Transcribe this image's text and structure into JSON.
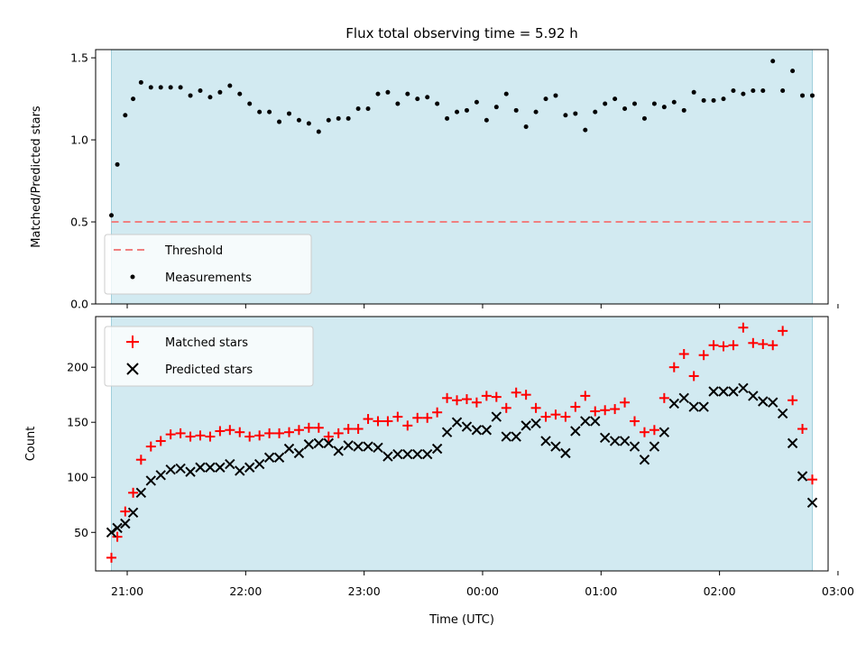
{
  "chart_data": [
    {
      "type": "scatter",
      "title": "Flux total observing time = 5.92 h",
      "xlabel": "",
      "ylabel": "Matched/Predicted stars",
      "ylim": [
        0,
        1.55
      ],
      "yticks": [
        "0.0",
        "0.5",
        "1.0",
        "1.5"
      ],
      "shaded_span": [
        "20:52",
        "02:47"
      ],
      "grid": false,
      "legend_position": "lower-left",
      "threshold": {
        "name": "Threshold",
        "value": 0.5,
        "color": "#f08080",
        "style": "dashed"
      },
      "series": [
        {
          "name": "Measurements",
          "color": "#000000",
          "x": [
            "20:52",
            "20:55",
            "20:59",
            "21:03",
            "21:07",
            "21:12",
            "21:17",
            "21:22",
            "21:27",
            "21:32",
            "21:37",
            "21:42",
            "21:47",
            "21:52",
            "21:57",
            "22:02",
            "22:07",
            "22:12",
            "22:17",
            "22:22",
            "22:27",
            "22:32",
            "22:37",
            "22:42",
            "22:47",
            "22:52",
            "22:57",
            "23:02",
            "23:07",
            "23:12",
            "23:17",
            "23:22",
            "23:27",
            "23:32",
            "23:37",
            "23:42",
            "23:47",
            "23:52",
            "23:57",
            "00:02",
            "00:07",
            "00:12",
            "00:17",
            "00:22",
            "00:27",
            "00:32",
            "00:37",
            "00:42",
            "00:47",
            "00:52",
            "00:57",
            "01:02",
            "01:07",
            "01:12",
            "01:17",
            "01:22",
            "01:27",
            "01:32",
            "01:37",
            "01:42",
            "01:47",
            "01:52",
            "01:57",
            "02:02",
            "02:07",
            "02:12",
            "02:17",
            "02:22",
            "02:27",
            "02:32",
            "02:37",
            "02:42",
            "02:47"
          ],
          "y": [
            0.54,
            0.85,
            1.15,
            1.25,
            1.35,
            1.32,
            1.32,
            1.32,
            1.32,
            1.27,
            1.3,
            1.26,
            1.29,
            1.33,
            1.28,
            1.22,
            1.17,
            1.17,
            1.11,
            1.16,
            1.12,
            1.1,
            1.05,
            1.12,
            1.13,
            1.13,
            1.19,
            1.19,
            1.28,
            1.29,
            1.22,
            1.28,
            1.25,
            1.26,
            1.22,
            1.13,
            1.17,
            1.18,
            1.23,
            1.12,
            1.2,
            1.28,
            1.18,
            1.08,
            1.17,
            1.25,
            1.27,
            1.15,
            1.16,
            1.06,
            1.17,
            1.22,
            1.25,
            1.19,
            1.22,
            1.13,
            1.22,
            1.2,
            1.23,
            1.18,
            1.29,
            1.24,
            1.24,
            1.25,
            1.3,
            1.28,
            1.3,
            1.3,
            1.48,
            1.3,
            1.42,
            1.27,
            1.27
          ]
        }
      ]
    },
    {
      "type": "scatter",
      "title": "",
      "xlabel": "Time (UTC)",
      "ylabel": "Count",
      "ylim": [
        15,
        246
      ],
      "yticks": [
        "50",
        "100",
        "150",
        "200"
      ],
      "xticks": [
        "21:00",
        "22:00",
        "23:00",
        "00:00",
        "01:00",
        "02:00",
        "03:00"
      ],
      "shaded_span": [
        "20:52",
        "02:47"
      ],
      "grid": false,
      "legend_position": "upper-left",
      "series": [
        {
          "name": "Matched stars",
          "marker": "plus",
          "color": "#ff0000",
          "x": [
            "20:52",
            "20:55",
            "20:59",
            "21:03",
            "21:07",
            "21:12",
            "21:17",
            "21:22",
            "21:27",
            "21:32",
            "21:37",
            "21:42",
            "21:47",
            "21:52",
            "21:57",
            "22:02",
            "22:07",
            "22:12",
            "22:17",
            "22:22",
            "22:27",
            "22:32",
            "22:37",
            "22:42",
            "22:47",
            "22:52",
            "22:57",
            "23:02",
            "23:07",
            "23:12",
            "23:17",
            "23:22",
            "23:27",
            "23:32",
            "23:37",
            "23:42",
            "23:47",
            "23:52",
            "23:57",
            "00:02",
            "00:07",
            "00:12",
            "00:17",
            "00:22",
            "00:27",
            "00:32",
            "00:37",
            "00:42",
            "00:47",
            "00:52",
            "00:57",
            "01:02",
            "01:07",
            "01:12",
            "01:17",
            "01:22",
            "01:27",
            "01:32",
            "01:37",
            "01:42",
            "01:47",
            "01:52",
            "01:57",
            "02:02",
            "02:07",
            "02:12",
            "02:17",
            "02:22",
            "02:27",
            "02:32",
            "02:37",
            "02:42",
            "02:47"
          ],
          "y": [
            27,
            46,
            69,
            86,
            116,
            128,
            133,
            139,
            140,
            137,
            138,
            137,
            142,
            143,
            141,
            137,
            138,
            140,
            140,
            141,
            143,
            145,
            145,
            137,
            140,
            144,
            144,
            153,
            151,
            151,
            155,
            147,
            154,
            154,
            159,
            172,
            170,
            171,
            168,
            174,
            173,
            163,
            177,
            175,
            163,
            155,
            157,
            155,
            164,
            174,
            160,
            161,
            162,
            168,
            151,
            141,
            143,
            172,
            200,
            212,
            192,
            211,
            220,
            219,
            220,
            236,
            222,
            221,
            220,
            233,
            170,
            144,
            98
          ]
        },
        {
          "name": "Predicted stars",
          "marker": "x",
          "color": "#000000",
          "x": [
            "20:52",
            "20:55",
            "20:59",
            "21:03",
            "21:07",
            "21:12",
            "21:17",
            "21:22",
            "21:27",
            "21:32",
            "21:37",
            "21:42",
            "21:47",
            "21:52",
            "21:57",
            "22:02",
            "22:07",
            "22:12",
            "22:17",
            "22:22",
            "22:27",
            "22:32",
            "22:37",
            "22:42",
            "22:47",
            "22:52",
            "22:57",
            "23:02",
            "23:07",
            "23:12",
            "23:17",
            "23:22",
            "23:27",
            "23:32",
            "23:37",
            "23:42",
            "23:47",
            "23:52",
            "23:57",
            "00:02",
            "00:07",
            "00:12",
            "00:17",
            "00:22",
            "00:27",
            "00:32",
            "00:37",
            "00:42",
            "00:47",
            "00:52",
            "00:57",
            "01:02",
            "01:07",
            "01:12",
            "01:17",
            "01:22",
            "01:27",
            "01:32",
            "01:37",
            "01:42",
            "01:47",
            "01:52",
            "01:57",
            "02:02",
            "02:07",
            "02:12",
            "02:17",
            "02:22",
            "02:27",
            "02:32",
            "02:37",
            "02:42",
            "02:47"
          ],
          "y": [
            50,
            54,
            58,
            68,
            86,
            97,
            102,
            107,
            108,
            105,
            109,
            109,
            109,
            112,
            106,
            109,
            112,
            118,
            118,
            126,
            122,
            130,
            131,
            131,
            124,
            129,
            128,
            128,
            127,
            119,
            121,
            121,
            121,
            121,
            126,
            141,
            150,
            146,
            143,
            143,
            155,
            137,
            137,
            147,
            149,
            133,
            128,
            122,
            142,
            151,
            151,
            136,
            133,
            133,
            128,
            116,
            128,
            141,
            167,
            172,
            164,
            164,
            178,
            178,
            178,
            181,
            174,
            169,
            168,
            158,
            131,
            101,
            77
          ]
        }
      ]
    }
  ]
}
